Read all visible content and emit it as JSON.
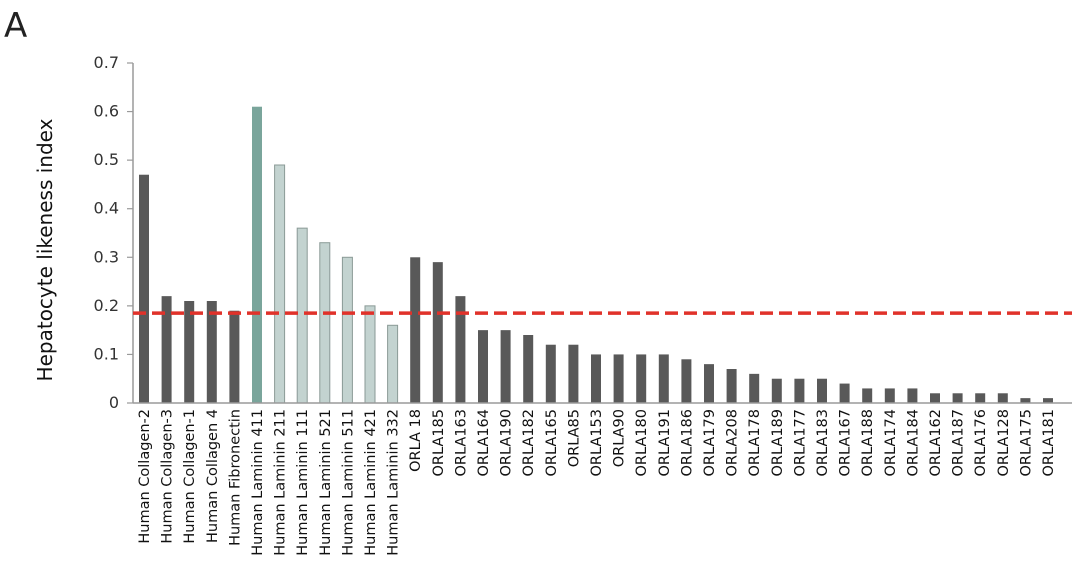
{
  "panel_label": "A",
  "chart_data": {
    "type": "bar",
    "title": "",
    "xlabel": "",
    "ylabel": "Hepatocyte likeness index",
    "ylim": [
      0,
      0.7
    ],
    "yticks": [
      "0",
      "0.1",
      "0.2",
      "0.3",
      "0.4",
      "0.5",
      "0.6",
      "0.7"
    ],
    "threshold": 0.185,
    "categories": [
      "Human Collagen-2",
      "Human Collagen-3",
      "Human Collagen-1",
      "Human Collagen 4",
      "Human Fibronectin",
      "Human Laminin 411",
      "Human Laminin 211",
      "Human Laminin 111",
      "Human Laminin 521",
      "Human Laminin 511",
      "Human Laminin 421",
      "Human Laminin 332",
      "ORLA 18",
      "ORLA185",
      "ORLA163",
      "ORLA164",
      "ORLA190",
      "ORLA182",
      "ORLA165",
      "ORLA85",
      "ORLA153",
      "ORLA90",
      "ORLA180",
      "ORLA191",
      "ORLA186",
      "ORLA179",
      "ORLA208",
      "ORLA178",
      "ORLA189",
      "ORLA177",
      "ORLA183",
      "ORLA167",
      "ORLA188",
      "ORLA174",
      "ORLA184",
      "ORLA162",
      "ORLA187",
      "ORLA176",
      "ORLA128",
      "ORLA175",
      "ORLA181"
    ],
    "values": [
      0.47,
      0.22,
      0.21,
      0.21,
      0.19,
      0.61,
      0.49,
      0.36,
      0.33,
      0.3,
      0.2,
      0.16,
      0.3,
      0.29,
      0.22,
      0.15,
      0.15,
      0.14,
      0.12,
      0.12,
      0.1,
      0.1,
      0.1,
      0.1,
      0.09,
      0.08,
      0.07,
      0.06,
      0.05,
      0.05,
      0.05,
      0.04,
      0.03,
      0.03,
      0.03,
      0.02,
      0.02,
      0.02,
      0.02,
      0.01,
      0.01
    ],
    "colors": {
      "dark": "#595959",
      "laminin411": "#7aa59b",
      "laminin": "#c3d3d0",
      "laminin_edge": "#8a9a96",
      "threshold": "#e0322a",
      "axis": "#9a9a9a"
    }
  }
}
